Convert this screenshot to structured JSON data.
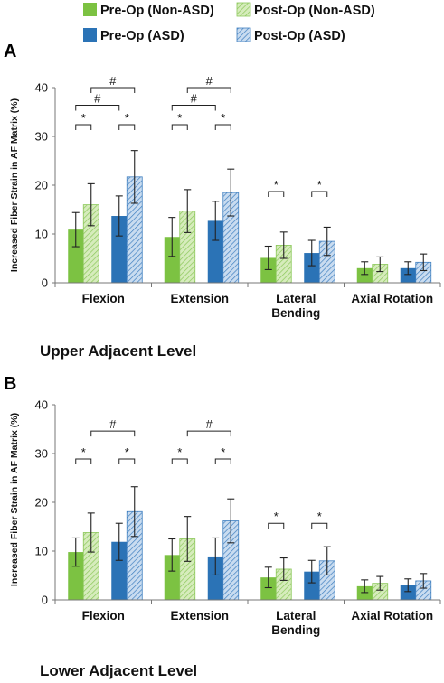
{
  "legend": [
    {
      "label": "Pre-Op (Non-ASD)",
      "color": "#7cc242",
      "pattern": "solid"
    },
    {
      "label": "Post-Op (Non-ASD)",
      "color": "#b9dd8e",
      "pattern": "hatch"
    },
    {
      "label": "Pre-Op (ASD)",
      "color": "#2b73b6",
      "pattern": "solid"
    },
    {
      "label": "Post-Op (ASD)",
      "color": "#8fb5df",
      "pattern": "hatch"
    }
  ],
  "chart_data": [
    {
      "panel": "A",
      "type": "bar",
      "title": "Upper Adjacent Level",
      "ylabel": "Increased Fiber Strain in AF Matrix (%)",
      "ylim": [
        0,
        40
      ],
      "yticks": [
        0,
        10,
        20,
        30,
        40
      ],
      "categories": [
        "Flexion",
        "Extension",
        "Lateral Bending",
        "Axial Rotation"
      ],
      "series": [
        {
          "name": "Pre-Op (Non-ASD)",
          "values": [
            10.9,
            9.4,
            5.1,
            3.0
          ],
          "errors": [
            3.5,
            4.0,
            2.4,
            1.3
          ]
        },
        {
          "name": "Post-Op (Non-ASD)",
          "values": [
            16.0,
            14.7,
            7.7,
            3.8
          ],
          "errors": [
            4.3,
            4.4,
            2.7,
            1.5
          ]
        },
        {
          "name": "Pre-Op (ASD)",
          "values": [
            13.7,
            12.7,
            6.1,
            3.0
          ],
          "errors": [
            4.1,
            4.0,
            2.6,
            1.3
          ]
        },
        {
          "name": "Post-Op (ASD)",
          "values": [
            21.7,
            18.5,
            8.5,
            4.2
          ],
          "errors": [
            5.4,
            4.8,
            2.9,
            1.7
          ]
        }
      ],
      "significance": [
        {
          "symbol": "*",
          "category": 0,
          "from": 0,
          "to": 1,
          "y": 32.4
        },
        {
          "symbol": "*",
          "category": 0,
          "from": 2,
          "to": 3,
          "y": 32.4
        },
        {
          "symbol": "#",
          "category": 0,
          "from": 0,
          "to": 2,
          "y": 36.4
        },
        {
          "symbol": "#",
          "category": 0,
          "from": 1,
          "to": 3,
          "y": 40.0
        },
        {
          "symbol": "*",
          "category": 1,
          "from": 0,
          "to": 1,
          "y": 32.4
        },
        {
          "symbol": "*",
          "category": 1,
          "from": 2,
          "to": 3,
          "y": 32.4
        },
        {
          "symbol": "#",
          "category": 1,
          "from": 0,
          "to": 2,
          "y": 36.4
        },
        {
          "symbol": "#",
          "category": 1,
          "from": 1,
          "to": 3,
          "y": 40.0
        },
        {
          "symbol": "*",
          "category": 2,
          "from": 0,
          "to": 1,
          "y": 18.7
        },
        {
          "symbol": "*",
          "category": 2,
          "from": 2,
          "to": 3,
          "y": 18.7
        }
      ]
    },
    {
      "panel": "B",
      "type": "bar",
      "title": "Lower Adjacent Level",
      "ylabel": "Increased Fiber Strain in AF Matrix (%)",
      "ylim": [
        0,
        40
      ],
      "yticks": [
        0,
        10,
        20,
        30,
        40
      ],
      "categories": [
        "Flexion",
        "Extension",
        "Lateral Bending",
        "Axial Rotation"
      ],
      "series": [
        {
          "name": "Pre-Op (Non-ASD)",
          "values": [
            9.8,
            9.2,
            4.6,
            2.8
          ],
          "errors": [
            2.9,
            3.3,
            2.1,
            1.3
          ]
        },
        {
          "name": "Post-Op (Non-ASD)",
          "values": [
            13.8,
            12.5,
            6.3,
            3.4
          ],
          "errors": [
            4.0,
            4.6,
            2.3,
            1.4
          ]
        },
        {
          "name": "Pre-Op (ASD)",
          "values": [
            11.9,
            8.9,
            5.8,
            3.0
          ],
          "errors": [
            3.8,
            3.8,
            2.3,
            1.3
          ]
        },
        {
          "name": "Post-Op (ASD)",
          "values": [
            18.1,
            16.2,
            8.0,
            3.9
          ],
          "errors": [
            5.1,
            4.5,
            2.9,
            1.5
          ]
        }
      ],
      "significance": [
        {
          "symbol": "*",
          "category": 0,
          "from": 0,
          "to": 1,
          "y": 28.9
        },
        {
          "symbol": "*",
          "category": 0,
          "from": 2,
          "to": 3,
          "y": 28.9
        },
        {
          "symbol": "#",
          "category": 0,
          "from": 1,
          "to": 3,
          "y": 34.6
        },
        {
          "symbol": "*",
          "category": 1,
          "from": 0,
          "to": 1,
          "y": 28.9
        },
        {
          "symbol": "*",
          "category": 1,
          "from": 2,
          "to": 3,
          "y": 28.9
        },
        {
          "symbol": "#",
          "category": 1,
          "from": 1,
          "to": 3,
          "y": 34.6
        },
        {
          "symbol": "*",
          "category": 2,
          "from": 0,
          "to": 1,
          "y": 15.7
        },
        {
          "symbol": "*",
          "category": 2,
          "from": 2,
          "to": 3,
          "y": 15.7
        }
      ]
    }
  ]
}
